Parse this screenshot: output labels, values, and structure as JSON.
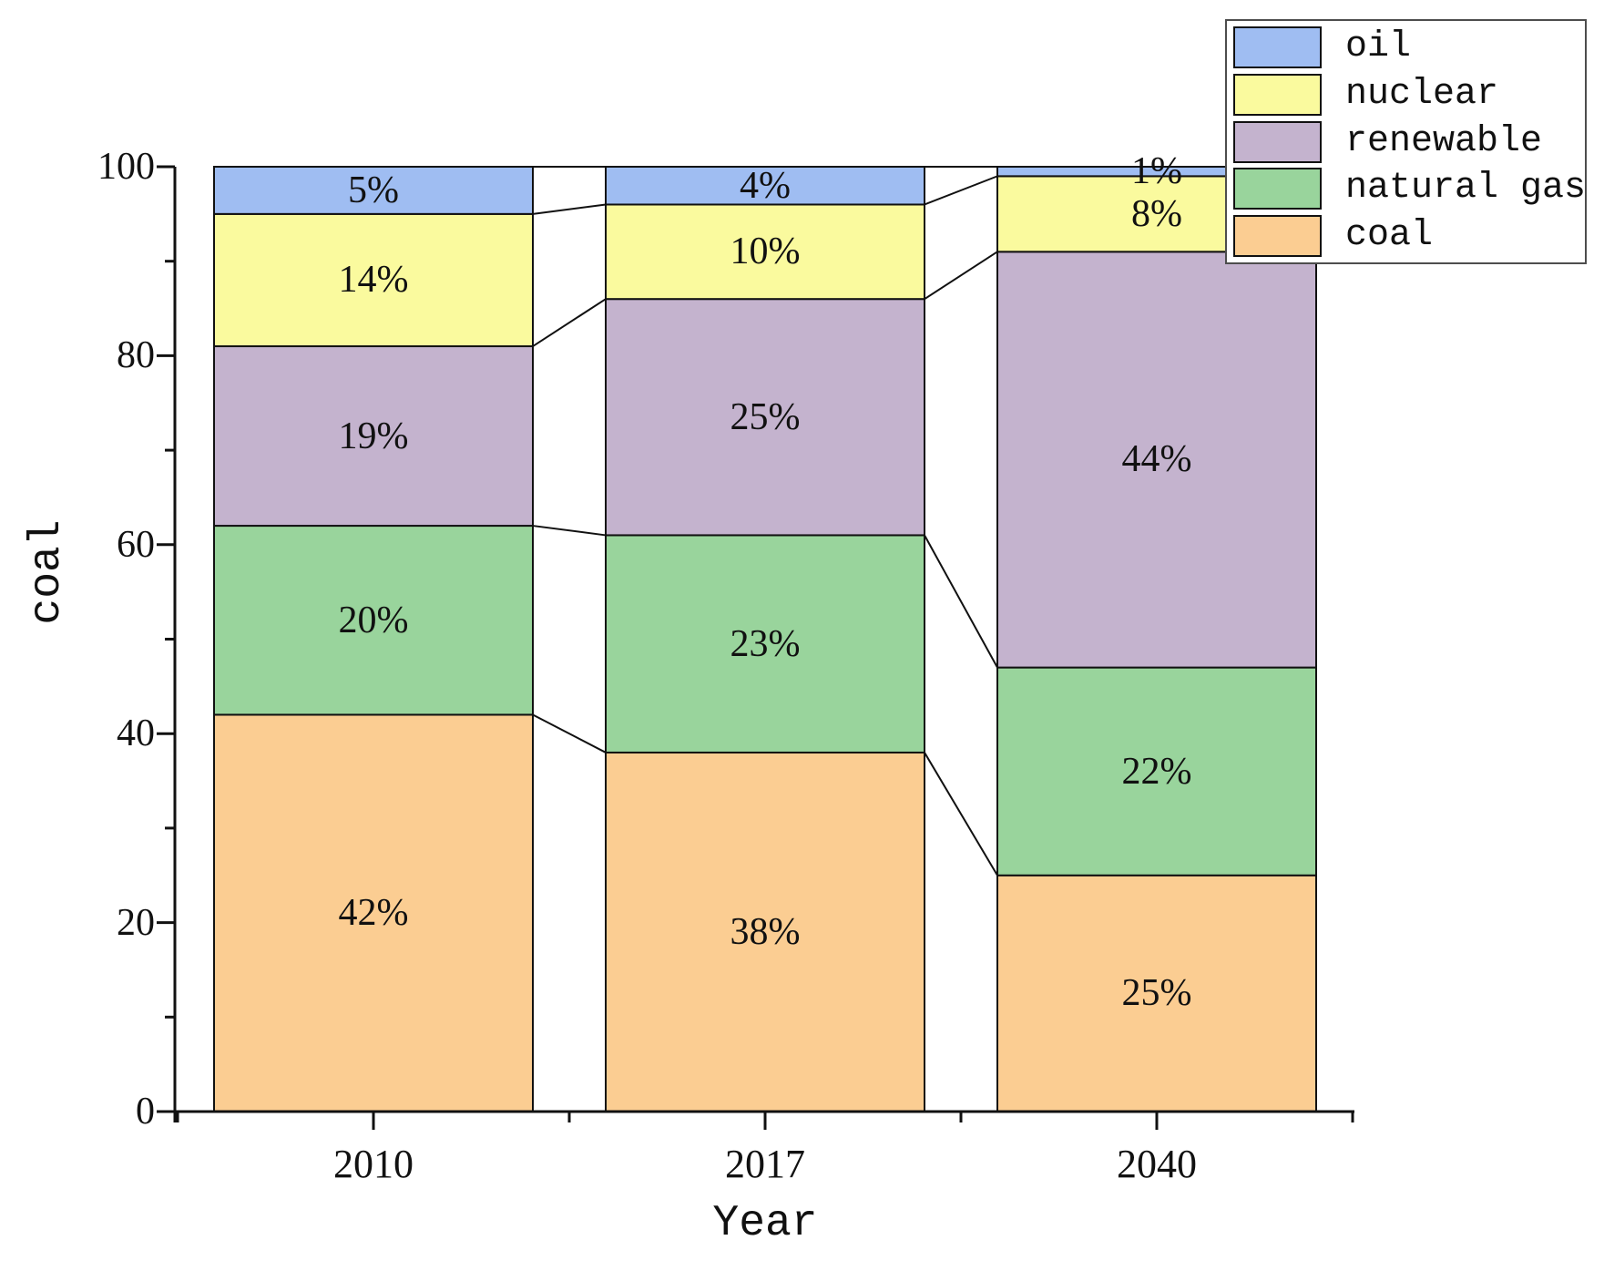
{
  "figure": {
    "background": "#ffffff"
  },
  "chart_data": {
    "type": "bar",
    "stacked": true,
    "title": "",
    "xlabel": "Year",
    "ylabel": "coal",
    "categories": [
      "2010",
      "2017",
      "2040"
    ],
    "series": [
      {
        "name": "coal",
        "color": "#fbcd92",
        "values": [
          42,
          38,
          25
        ]
      },
      {
        "name": "natural gas",
        "color": "#99d49c",
        "values": [
          20,
          23,
          22
        ]
      },
      {
        "name": "renewable",
        "color": "#c4b3ce",
        "values": [
          19,
          25,
          44
        ]
      },
      {
        "name": "nuclear",
        "color": "#fafa9e",
        "values": [
          14,
          10,
          8
        ]
      },
      {
        "name": "oil",
        "color": "#9fbdf2",
        "values": [
          5,
          4,
          1
        ]
      }
    ],
    "value_suffix": "%",
    "segment_labels": [
      [
        "42%",
        "20%",
        "19%",
        "14%",
        "5%"
      ],
      [
        "38%",
        "23%",
        "25%",
        "10%",
        "4%"
      ],
      [
        "25%",
        "22%",
        "44%",
        "8%",
        "1%"
      ]
    ],
    "ylim": [
      0,
      100
    ],
    "y_ticks": [
      0,
      20,
      40,
      60,
      80,
      100
    ],
    "y_minor_ticks": [
      10,
      30,
      50,
      70,
      90
    ],
    "grid": false,
    "connectors": true,
    "legend": {
      "position": "top-right",
      "entries": [
        "oil",
        "nuclear",
        "renewable",
        "natural gas",
        "coal"
      ]
    },
    "axis_color": "#111111",
    "edge_color": "#111111",
    "label_color": "#111111"
  }
}
